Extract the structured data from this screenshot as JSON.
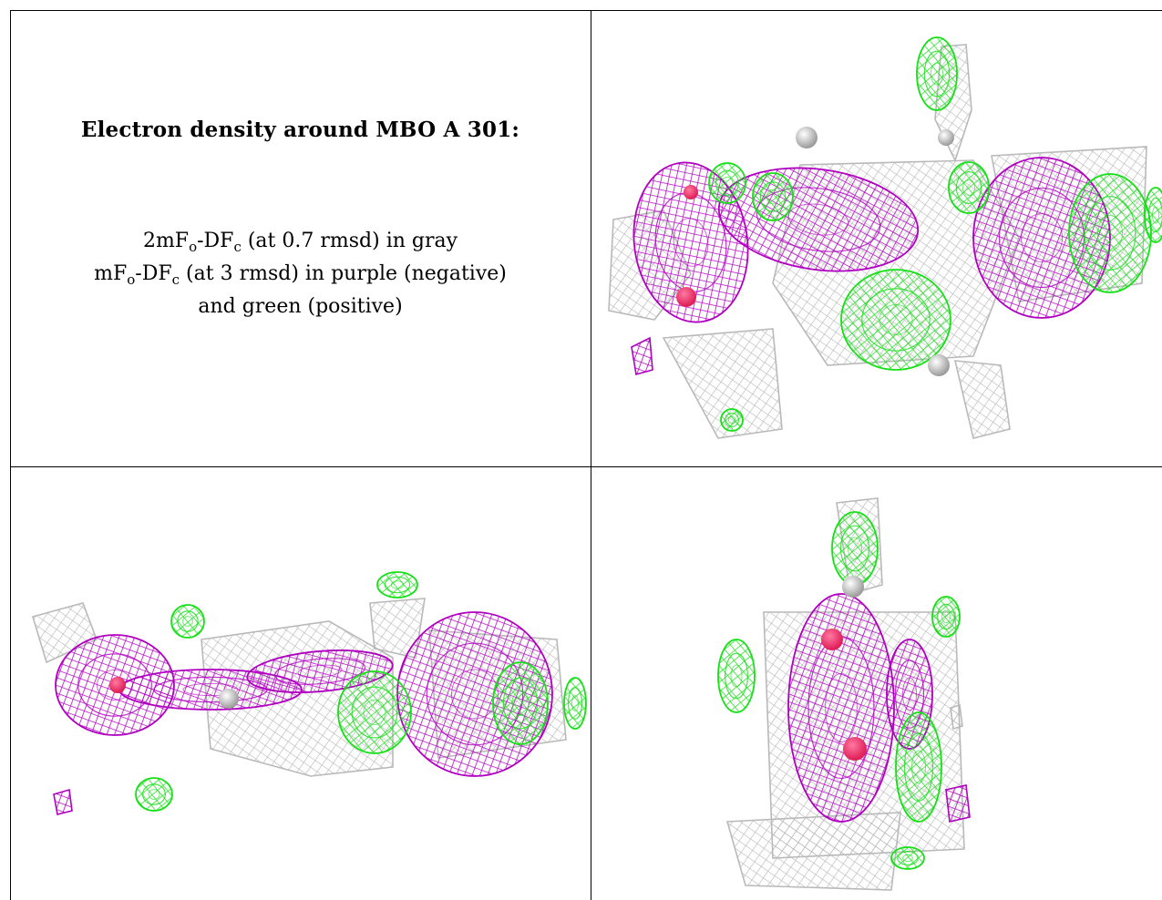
{
  "caption": {
    "title": "Electron density around MBO A 301:",
    "line1": {
      "pre": "2mF",
      "sub1": "o",
      "mid": "-DF",
      "sub2": "c",
      "post": " (at 0.7 rmsd) in gray"
    },
    "line2": {
      "pre": "mF",
      "sub1": "o",
      "mid": "-DF",
      "sub2": "c",
      "post": " (at 3 rmsd) in purple (negative)"
    },
    "line3": "and green (positive)"
  },
  "panels": [
    {
      "view": "top-right"
    },
    {
      "view": "bottom-left"
    },
    {
      "view": "bottom-right"
    }
  ],
  "colors": {
    "gray_mesh": "#b9b9b9",
    "purple_mesh": "#b000c0",
    "green_mesh": "#16e016",
    "atom_red": "#e0205a",
    "atom_white": "#e8e8e8"
  }
}
